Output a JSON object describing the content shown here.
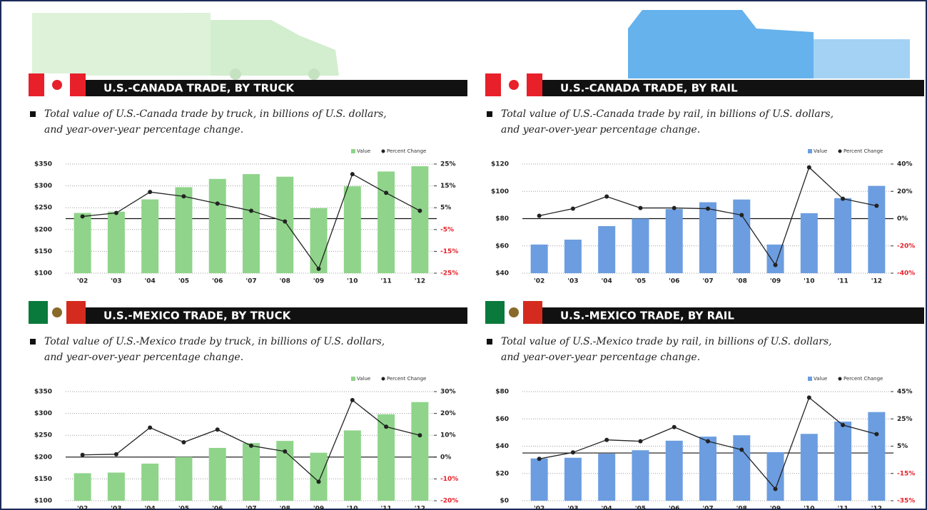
{
  "chart_data": [
    {
      "type": "bar",
      "title": "U.S.-CANADA TRADE, BY TRUCK",
      "subtitle": [
        "Total value of U.S.-Canada trade by truck, in billions of U.S. dollars,",
        "and year-over-year percentage change."
      ],
      "categories": [
        "'02",
        "'03",
        "'04",
        "'05",
        "'06",
        "'07",
        "'08",
        "'09",
        "'10",
        "'11",
        "'12"
      ],
      "series": [
        {
          "name": "Value",
          "color": "#8fd48a",
          "values": [
            238,
            241,
            269,
            297,
            316,
            327,
            321,
            249,
            299,
            333,
            345
          ]
        },
        {
          "name": "Percent Change",
          "type": "line",
          "axis": "y2",
          "color": "#222222",
          "values": [
            1,
            2.6,
            12.2,
            10.2,
            6.9,
            3.6,
            -1.3,
            -23,
            20.4,
            11.8,
            3.6
          ]
        }
      ],
      "ylim": [
        100,
        350
      ],
      "yticks": [
        {
          "value": 100,
          "label": "$100"
        },
        {
          "value": 150,
          "label": "$150"
        },
        {
          "value": 200,
          "label": "$200"
        },
        {
          "value": 250,
          "label": "$250"
        },
        {
          "value": 300,
          "label": "$300"
        },
        {
          "value": 350,
          "label": "$350"
        }
      ],
      "y2lim": [
        -25,
        25
      ],
      "y2ticks": [
        {
          "value": -25,
          "label": "-25%"
        },
        {
          "value": -15,
          "label": "-15%"
        },
        {
          "value": -5,
          "label": "-5%"
        },
        {
          "value": 5,
          "label": "5%"
        },
        {
          "value": 15,
          "label": "15%"
        },
        {
          "value": 25,
          "label": "25%"
        }
      ],
      "grid": true
    },
    {
      "type": "bar",
      "title": "U.S.-CANADA TRADE, BY RAIL",
      "subtitle": [
        "Total value of U.S.-Canada trade by rail, in billions of U.S. dollars,",
        "and year-over-year percentage change."
      ],
      "categories": [
        "'02",
        "'03",
        "'04",
        "'05",
        "'06",
        "'07",
        "'08",
        "'09",
        "'10",
        "'11",
        "'12"
      ],
      "series": [
        {
          "name": "Value",
          "color": "#6c9de0",
          "values": [
            61,
            64.6,
            74.5,
            80,
            87,
            92,
            94,
            61,
            84,
            95,
            104
          ]
        },
        {
          "name": "Percent Change",
          "type": "line",
          "axis": "y2",
          "color": "#222222",
          "values": [
            2.1,
            7.3,
            16.2,
            7.8,
            7.8,
            7.3,
            2.6,
            -34,
            37.6,
            14.6,
            9.4
          ]
        }
      ],
      "ylim": [
        40,
        120
      ],
      "yticks": [
        {
          "value": 40,
          "label": "$40"
        },
        {
          "value": 60,
          "label": "$60"
        },
        {
          "value": 80,
          "label": "$80"
        },
        {
          "value": 100,
          "label": "$100"
        },
        {
          "value": 120,
          "label": "$120"
        }
      ],
      "y2lim": [
        -40,
        40
      ],
      "y2ticks": [
        {
          "value": -40,
          "label": "-40%"
        },
        {
          "value": -20,
          "label": "-20%"
        },
        {
          "value": 0,
          "label": "0%"
        },
        {
          "value": 20,
          "label": "20%"
        },
        {
          "value": 40,
          "label": "40%"
        }
      ],
      "grid": true
    },
    {
      "type": "bar",
      "title": "U.S.-MEXICO TRADE, BY TRUCK",
      "subtitle": [
        "Total value of U.S.-Mexico trade by truck, in billions of U.S. dollars,",
        "and year-over-year percentage change."
      ],
      "categories": [
        "'02",
        "'03",
        "'04",
        "'05",
        "'06",
        "'07",
        "'08",
        "'09",
        "'10",
        "'11",
        "'12"
      ],
      "series": [
        {
          "name": "Value",
          "color": "#8fd48a",
          "values": [
            163,
            164.5,
            185,
            200,
            221,
            232,
            237,
            210,
            261,
            298,
            326
          ]
        },
        {
          "name": "Percent Change",
          "type": "line",
          "axis": "y2",
          "color": "#222222",
          "values": [
            1,
            1.3,
            13.5,
            6.8,
            12.6,
            5.2,
            2.6,
            -11.3,
            26.1,
            13.9,
            10
          ]
        }
      ],
      "ylim": [
        100,
        350
      ],
      "yticks": [
        {
          "value": 100,
          "label": "$100"
        },
        {
          "value": 150,
          "label": "$150"
        },
        {
          "value": 200,
          "label": "$200"
        },
        {
          "value": 250,
          "label": "$250"
        },
        {
          "value": 300,
          "label": "$300"
        },
        {
          "value": 350,
          "label": "$350"
        }
      ],
      "y2lim": [
        -20,
        30
      ],
      "y2ticks": [
        {
          "value": -20,
          "label": "-20%"
        },
        {
          "value": -10,
          "label": "-10%"
        },
        {
          "value": 0,
          "label": "0%"
        },
        {
          "value": 10,
          "label": "10%"
        },
        {
          "value": 20,
          "label": "20%"
        },
        {
          "value": 30,
          "label": "30%"
        }
      ],
      "grid": true
    },
    {
      "type": "bar",
      "title": "U.S.-MEXICO TRADE, BY RAIL",
      "subtitle": [
        "Total value of U.S.-Mexico trade by rail, in billions of U.S. dollars,",
        "and year-over-year percentage change."
      ],
      "categories": [
        "'02",
        "'03",
        "'04",
        "'05",
        "'06",
        "'07",
        "'08",
        "'09",
        "'10",
        "'11",
        "'12"
      ],
      "series": [
        {
          "name": "Value",
          "color": "#6c9de0",
          "values": [
            31,
            31.5,
            34.5,
            37,
            44,
            47,
            48,
            35.6,
            49,
            58,
            65
          ]
        },
        {
          "name": "Percent Change",
          "type": "line",
          "axis": "y2",
          "color": "#222222",
          "values": [
            -4.3,
            0.4,
            9.6,
            8.6,
            19,
            8.6,
            2.4,
            -26.4,
            40.6,
            20.5,
            13.8
          ]
        }
      ],
      "ylim": [
        0,
        80
      ],
      "yticks": [
        {
          "value": 0,
          "label": "$0"
        },
        {
          "value": 20,
          "label": "$20"
        },
        {
          "value": 40,
          "label": "$40"
        },
        {
          "value": 60,
          "label": "$60"
        },
        {
          "value": 80,
          "label": "$80"
        }
      ],
      "y2lim": [
        -35,
        45
      ],
      "y2ticks": [
        {
          "value": -35,
          "label": "-35%"
        },
        {
          "value": -15,
          "label": "-15%"
        },
        {
          "value": 5,
          "label": "5%"
        },
        {
          "value": 25,
          "label": "25%"
        },
        {
          "value": 45,
          "label": "45%"
        }
      ],
      "grid": true
    }
  ]
}
